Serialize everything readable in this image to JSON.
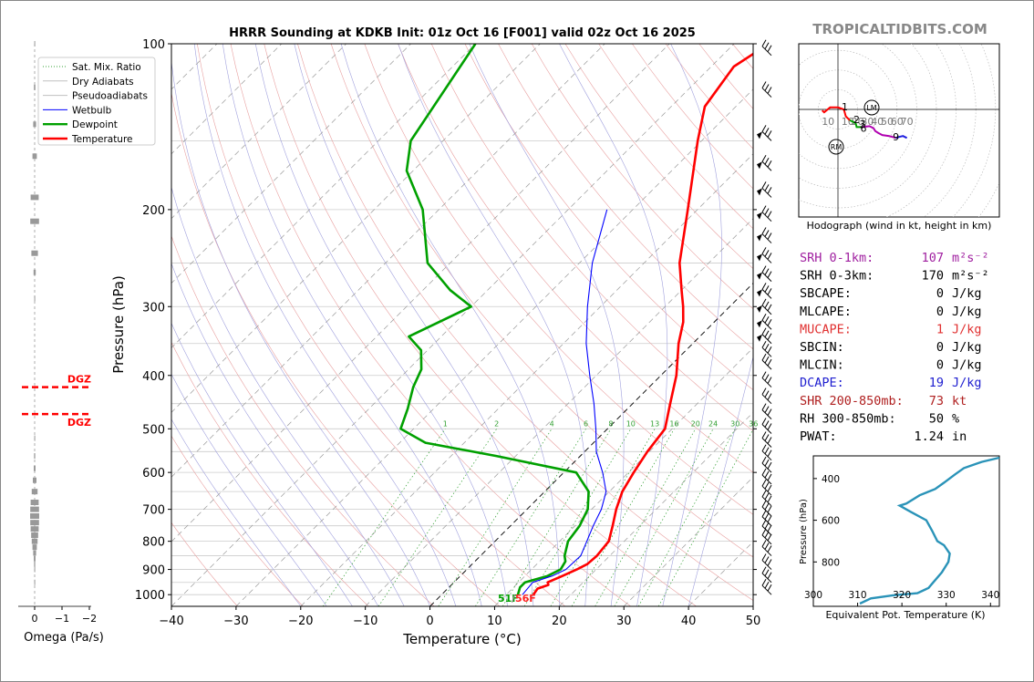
{
  "chart_data": [
    {
      "type": "skew-t",
      "title": "HRRR Sounding at KDKB Init: 01z Oct 16 [F001] valid 02z Oct 16 2025",
      "xlabel": "Temperature (°C)",
      "ylabel": "Pressure (hPa)",
      "xlim": [
        -40,
        50
      ],
      "ylim": [
        1050,
        100
      ],
      "x_ticks": [
        -40,
        -30,
        -20,
        -10,
        0,
        10,
        20,
        30,
        40,
        50
      ],
      "x_tick_labels": [
        "−40",
        "−30",
        "−20",
        "−10",
        "0",
        "10",
        "20",
        "30",
        "40",
        "50"
      ],
      "y_ticks": [
        100,
        200,
        300,
        400,
        500,
        600,
        700,
        800,
        900,
        1000
      ],
      "mixing_ratio_labels": [
        "1",
        "2",
        "4",
        "6",
        "8",
        "10",
        "13",
        "16",
        "20",
        "24",
        "30",
        "36"
      ],
      "legend": {
        "placement": "top-left",
        "entries": [
          "Sat. Mix. Ratio",
          "Dry Adiabats",
          "Pseudoadiabats",
          "Wetbulb",
          "Dewpoint",
          "Temperature"
        ]
      },
      "surface_labels": {
        "dewpoint": "51F",
        "temperature": "56F"
      },
      "series": [
        {
          "name": "Temperature",
          "color": "#ff0000",
          "points": [
            [
              1000,
              14.2
            ],
            [
              975,
              13.9
            ],
            [
              960,
              15.0
            ],
            [
              950,
              14.5
            ],
            [
              925,
              15.8
            ],
            [
              900,
              17.0
            ],
            [
              880,
              17.8
            ],
            [
              850,
              18.0
            ],
            [
              800,
              17.6
            ],
            [
              750,
              15.8
            ],
            [
              700,
              13.8
            ],
            [
              650,
              12.0
            ],
            [
              600,
              10.8
            ],
            [
              550,
              9.7
            ],
            [
              500,
              8.9
            ],
            [
              450,
              5.8
            ],
            [
              400,
              2.4
            ],
            [
              350,
              -2.2
            ],
            [
              320,
              -4.8
            ],
            [
              300,
              -7.2
            ],
            [
              280,
              -10.0
            ],
            [
              250,
              -14.5
            ],
            [
              200,
              -21.5
            ],
            [
              150,
              -30.6
            ],
            [
              130,
              -34.8
            ],
            [
              110,
              -36.5
            ],
            [
              100,
              -34.6
            ]
          ]
        },
        {
          "name": "Dewpoint",
          "color": "#00a000",
          "points": [
            [
              1000,
              11.8
            ],
            [
              970,
              11.0
            ],
            [
              950,
              11.0
            ],
            [
              925,
              13.5
            ],
            [
              900,
              14.5
            ],
            [
              870,
              14.0
            ],
            [
              850,
              13.0
            ],
            [
              800,
              11.3
            ],
            [
              750,
              10.7
            ],
            [
              700,
              9.4
            ],
            [
              650,
              6.8
            ],
            [
              600,
              1.9
            ],
            [
              560,
              -13.0
            ],
            [
              530,
              -26.0
            ],
            [
              500,
              -32.0
            ],
            [
              460,
              -34.0
            ],
            [
              420,
              -36.5
            ],
            [
              390,
              -38.0
            ],
            [
              360,
              -41.0
            ],
            [
              340,
              -45.0
            ],
            [
              300,
              -40.0
            ],
            [
              280,
              -45.8
            ],
            [
              250,
              -53.5
            ],
            [
              200,
              -62.5
            ],
            [
              170,
              -71.0
            ],
            [
              150,
              -75.0
            ],
            [
              100,
              -80.0
            ]
          ]
        },
        {
          "name": "Wetbulb",
          "color": "#0000ff",
          "points": [
            [
              1000,
              12.5
            ],
            [
              950,
              12.2
            ],
            [
              925,
              14.2
            ],
            [
              900,
              15.3
            ],
            [
              850,
              15.5
            ],
            [
              800,
              14.2
            ],
            [
              750,
              12.8
            ],
            [
              700,
              11.5
            ],
            [
              650,
              9.5
            ],
            [
              600,
              6.0
            ],
            [
              550,
              1.8
            ],
            [
              500,
              -1.8
            ],
            [
              450,
              -6.0
            ],
            [
              400,
              -11.0
            ],
            [
              350,
              -16.5
            ],
            [
              300,
              -22.0
            ],
            [
              250,
              -28.0
            ],
            [
              200,
              -34.0
            ]
          ]
        }
      ],
      "wind_barbs_shown": true
    },
    {
      "type": "bar",
      "name": "omega",
      "xlabel": "Omega (Pa/s)",
      "x_ticks": [
        "0",
        "−1",
        "−2"
      ],
      "dgz_labels": [
        "DGZ",
        "DGZ"
      ],
      "dgz_pressures": [
        420,
        470
      ],
      "bars": [
        [
          100,
          0.05
        ],
        [
          120,
          0.1
        ],
        [
          140,
          0.2
        ],
        [
          160,
          0.3
        ],
        [
          190,
          0.55
        ],
        [
          210,
          0.6
        ],
        [
          240,
          0.45
        ],
        [
          260,
          0.15
        ],
        [
          290,
          0.05
        ],
        [
          520,
          0.05
        ],
        [
          560,
          0.08
        ],
        [
          590,
          0.12
        ],
        [
          620,
          0.25
        ],
        [
          650,
          0.4
        ],
        [
          680,
          0.55
        ],
        [
          700,
          0.6
        ],
        [
          720,
          0.62
        ],
        [
          740,
          0.6
        ],
        [
          760,
          0.55
        ],
        [
          780,
          0.48
        ],
        [
          800,
          0.4
        ],
        [
          820,
          0.3
        ],
        [
          840,
          0.2
        ],
        [
          860,
          0.12
        ],
        [
          880,
          0.08
        ],
        [
          900,
          0.05
        ],
        [
          950,
          0.05
        ]
      ]
    },
    {
      "type": "line",
      "name": "hodograph",
      "caption": "Hodograph (wind in kt, height in km)",
      "ring_labels": [
        "10",
        "10",
        "20",
        "30",
        "40",
        "50",
        "60",
        "70"
      ],
      "markers": {
        "LM": "LM",
        "RM": "RM"
      },
      "height_labels": [
        "1",
        "2",
        "3",
        "6",
        "9"
      ],
      "points_kt": [
        [
          -16,
          -1
        ],
        [
          -14,
          -3
        ],
        [
          -8,
          2
        ],
        [
          0,
          2
        ],
        [
          6,
          0
        ],
        [
          8,
          -7
        ],
        [
          12,
          -11
        ],
        [
          18,
          -14
        ],
        [
          19,
          -18
        ],
        [
          24,
          -18
        ],
        [
          32,
          -17
        ],
        [
          36,
          -19
        ],
        [
          38,
          -22
        ],
        [
          41,
          -24
        ],
        [
          45,
          -26
        ],
        [
          52,
          -27
        ],
        [
          59,
          -29
        ],
        [
          62,
          -28
        ],
        [
          66,
          -27
        ],
        [
          70,
          -29
        ]
      ],
      "segment_colors": [
        "#ff0000",
        "#00a000",
        "#b000b0",
        "#2020e0"
      ]
    },
    {
      "type": "line",
      "name": "theta-e",
      "xlabel": "Equivalent Pot. Temperature (K)",
      "ylabel": "Pressure (hPa)",
      "xlim": [
        300,
        342
      ],
      "ylim": [
        1000,
        300
      ],
      "x_ticks": [
        300,
        310,
        320,
        330,
        340
      ],
      "y_ticks": [
        400,
        600,
        800
      ],
      "color": "#2a93b8",
      "points": [
        [
          1000,
          310.5
        ],
        [
          975,
          313.0
        ],
        [
          960,
          318.0
        ],
        [
          950,
          323.5
        ],
        [
          925,
          326.0
        ],
        [
          900,
          327.0
        ],
        [
          850,
          329.0
        ],
        [
          800,
          330.5
        ],
        [
          760,
          330.8
        ],
        [
          720,
          329.5
        ],
        [
          700,
          328.0
        ],
        [
          650,
          326.8
        ],
        [
          600,
          325.5
        ],
        [
          560,
          322.0
        ],
        [
          530,
          319.5
        ],
        [
          520,
          321.0
        ],
        [
          480,
          324.0
        ],
        [
          450,
          327.5
        ],
        [
          420,
          329.5
        ],
        [
          380,
          332.0
        ],
        [
          350,
          334.0
        ],
        [
          320,
          338.0
        ],
        [
          300,
          342.0
        ]
      ]
    }
  ],
  "brand": "TROPICALTIDBITS.COM",
  "params": [
    {
      "label": "SRH 0-1km:",
      "value": "107",
      "unit": "m²s⁻²",
      "color": "#a020a0",
      "value_color": "#a020a0"
    },
    {
      "label": "SRH 0-3km:",
      "value": "170",
      "unit": "m²s⁻²",
      "color": "#000000",
      "value_color": "#000000"
    },
    {
      "label": "SBCAPE:",
      "value": "0",
      "unit": "J/kg",
      "color": "#000000",
      "value_color": "#000000"
    },
    {
      "label": "MLCAPE:",
      "value": "0",
      "unit": "J/kg",
      "color": "#000000",
      "value_color": "#000000"
    },
    {
      "label": "MUCAPE:",
      "value": "1",
      "unit": "J/kg",
      "color": "#e03030",
      "value_color": "#e03030"
    },
    {
      "label": "SBCIN:",
      "value": "0",
      "unit": "J/kg",
      "color": "#000000",
      "value_color": "#000000"
    },
    {
      "label": "MLCIN:",
      "value": "0",
      "unit": "J/kg",
      "color": "#000000",
      "value_color": "#000000"
    },
    {
      "label": "DCAPE:",
      "value": "19",
      "unit": "J/kg",
      "color": "#2020d0",
      "value_color": "#2020d0"
    },
    {
      "label": "SHR 200-850mb:",
      "value": "73",
      "unit": "kt",
      "color": "#b02020",
      "value_color": "#b02020"
    },
    {
      "label": "RH 300-850mb:",
      "value": "50",
      "unit": "%",
      "color": "#000000",
      "value_color": "#000000"
    },
    {
      "label": "PWAT:",
      "value": "1.24",
      "unit": "in",
      "color": "#000000",
      "value_color": "#000000"
    }
  ]
}
